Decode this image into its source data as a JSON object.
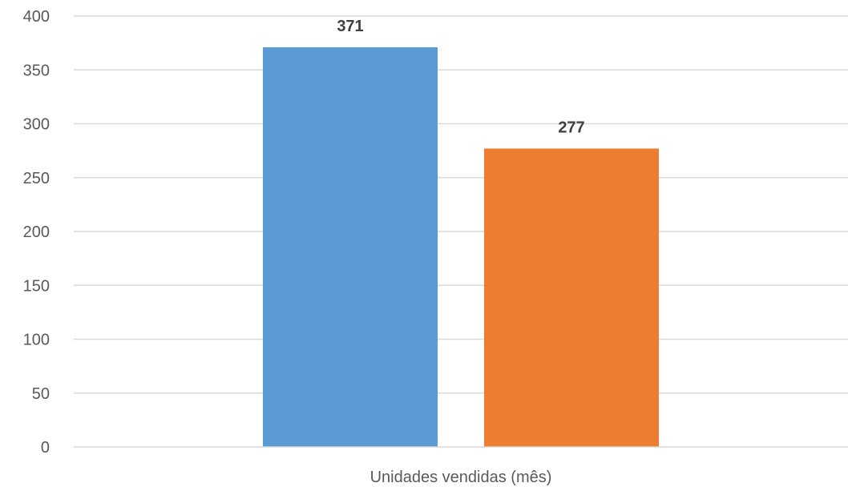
{
  "chart_data": {
    "type": "bar",
    "categories": [
      "Unidades vendidas (mês)"
    ],
    "series": [
      {
        "values": [
          371
        ],
        "color": "#5b9bd5"
      },
      {
        "values": [
          277
        ],
        "color": "#ed7d31"
      }
    ],
    "ylim": [
      0,
      400
    ],
    "yticks": [
      0,
      50,
      100,
      150,
      200,
      250,
      300,
      350,
      400
    ],
    "grid": true,
    "data_labels": true,
    "legend": "none"
  }
}
